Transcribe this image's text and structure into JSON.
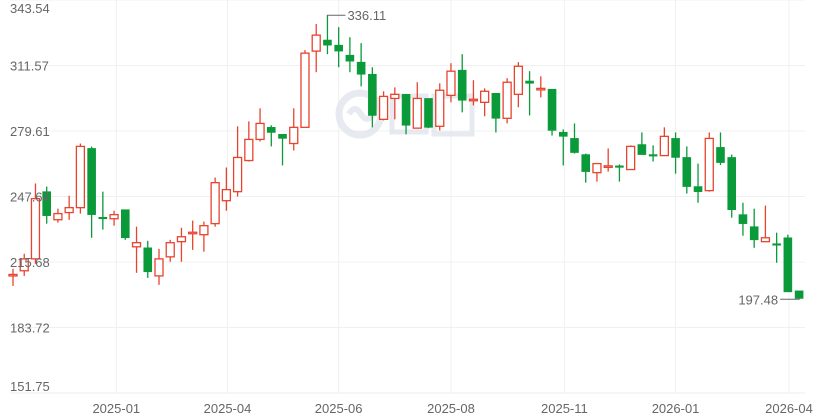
{
  "chart_data": {
    "type": "candlestick",
    "title": "",
    "xlabel": "",
    "ylabel": "",
    "ylim": [
      151.75,
      343.54
    ],
    "y_ticks": [
      "343.54",
      "311.57",
      "279.61",
      "247.64",
      "215.68",
      "183.72",
      "151.75"
    ],
    "x_ticks": [
      {
        "label": "2025-01",
        "index": 9.2
      },
      {
        "label": "2025-04",
        "index": 19.1
      },
      {
        "label": "2025-06",
        "index": 29.0
      },
      {
        "label": "2025-08",
        "index": 39.0
      },
      {
        "label": "2025-11",
        "index": 49.1
      },
      {
        "label": "2026-01",
        "index": 59.0
      },
      {
        "label": "2026-04",
        "index": 69.1
      }
    ],
    "grid": true,
    "colors": {
      "up": "#e8432f",
      "down": "#0a9a3a",
      "grid": "#f0f0f0",
      "text": "#666666",
      "watermark": "#dfe4ec"
    },
    "watermark": "雪球",
    "max_annotation": {
      "label": "336.11",
      "index": 28,
      "value": 336.11
    },
    "min_annotation": {
      "label": "197.48",
      "index": 70,
      "value": 197.48
    },
    "candles_ohlc": [
      [
        209.2,
        212.4,
        204.0,
        209.6
      ],
      [
        211.4,
        219.7,
        208.9,
        217.2
      ],
      [
        217.2,
        254.0,
        214.8,
        246.6
      ],
      [
        250.0,
        252.5,
        234.4,
        238.3
      ],
      [
        236.3,
        241.7,
        234.9,
        239.3
      ],
      [
        239.8,
        248.0,
        236.3,
        242.2
      ],
      [
        242.2,
        273.5,
        239.3,
        272.1
      ],
      [
        271.1,
        272.0,
        227.5,
        238.8
      ],
      [
        237.5,
        250.0,
        231.5,
        236.8
      ],
      [
        236.8,
        240.7,
        233.4,
        238.8
      ],
      [
        241.2,
        241.2,
        226.5,
        227.5
      ],
      [
        223.1,
        232.9,
        210.4,
        225.1
      ],
      [
        222.6,
        226.0,
        207.9,
        210.9
      ],
      [
        208.9,
        222.1,
        204.5,
        217.2
      ],
      [
        218.2,
        226.5,
        215.8,
        225.1
      ],
      [
        225.6,
        232.4,
        215.8,
        228.0
      ],
      [
        229.7,
        235.9,
        221.6,
        230.2
      ],
      [
        229.0,
        235.4,
        220.7,
        233.4
      ],
      [
        234.4,
        256.9,
        232.9,
        254.4
      ],
      [
        245.6,
        261.8,
        240.7,
        251.0
      ],
      [
        250.0,
        281.9,
        247.6,
        266.7
      ],
      [
        265.2,
        284.3,
        264.7,
        275.5
      ],
      [
        275.5,
        290.7,
        274.5,
        283.3
      ],
      [
        281.4,
        282.4,
        272.1,
        278.9
      ],
      [
        278.0,
        278.0,
        262.8,
        276.0
      ],
      [
        273.5,
        290.7,
        270.1,
        281.4
      ],
      [
        281.4,
        319.1,
        281.4,
        317.6
      ],
      [
        318.6,
        331.8,
        308.3,
        326.4
      ],
      [
        324.0,
        336.11,
        317.1,
        321.5
      ],
      [
        321.5,
        330.3,
        310.7,
        318.6
      ],
      [
        316.6,
        325.4,
        308.3,
        313.7
      ],
      [
        313.2,
        322.5,
        301.4,
        307.3
      ],
      [
        307.3,
        310.7,
        281.4,
        287.2
      ],
      [
        285.3,
        299.0,
        284.8,
        296.5
      ],
      [
        295.5,
        300.9,
        285.3,
        297.5
      ],
      [
        297.5,
        297.5,
        278.0,
        282.4
      ],
      [
        281.0,
        303.4,
        281.0,
        295.5
      ],
      [
        295.5,
        295.5,
        281.0,
        281.4
      ],
      [
        281.9,
        302.9,
        279.9,
        299.5
      ],
      [
        297.0,
        312.7,
        293.6,
        308.8
      ],
      [
        309.3,
        317.1,
        288.7,
        294.6
      ],
      [
        294.6,
        304.4,
        292.1,
        295.1
      ],
      [
        293.6,
        300.4,
        286.8,
        299.0
      ],
      [
        298.0,
        298.0,
        278.9,
        285.8
      ],
      [
        285.8,
        305.4,
        283.3,
        303.4
      ],
      [
        297.5,
        313.2,
        291.2,
        311.2
      ],
      [
        304.0,
        308.8,
        287.2,
        302.9
      ],
      [
        300.0,
        306.3,
        296.0,
        300.4
      ],
      [
        300.0,
        300.0,
        277.4,
        279.9
      ],
      [
        279.0,
        280.4,
        262.8,
        277.0
      ],
      [
        276.0,
        283.3,
        268.6,
        269.1
      ],
      [
        268.1,
        268.6,
        254.4,
        259.8
      ],
      [
        259.3,
        263.7,
        254.9,
        263.7
      ],
      [
        262.1,
        271.1,
        259.8,
        262.6
      ],
      [
        262.6,
        263.3,
        254.9,
        262.1
      ],
      [
        260.8,
        272.6,
        260.8,
        272.1
      ],
      [
        273.0,
        278.9,
        268.1,
        268.1
      ],
      [
        268.1,
        272.6,
        264.7,
        267.6
      ],
      [
        267.6,
        281.4,
        267.6,
        277.0
      ],
      [
        276.0,
        278.9,
        258.8,
        266.7
      ],
      [
        266.7,
        272.1,
        249.1,
        252.5
      ],
      [
        252.5,
        263.7,
        244.6,
        250.0
      ],
      [
        250.5,
        278.9,
        250.0,
        276.0
      ],
      [
        271.6,
        278.9,
        263.0,
        264.2
      ],
      [
        266.7,
        268.1,
        237.3,
        241.2
      ],
      [
        238.8,
        244.6,
        228.5,
        234.4
      ],
      [
        232.9,
        241.7,
        222.6,
        226.5
      ],
      [
        225.6,
        243.2,
        225.6,
        227.5
      ],
      [
        224.6,
        230.0,
        215.3,
        224.1
      ],
      [
        227.5,
        229.0,
        201.1,
        201.1
      ],
      [
        201.6,
        201.6,
        197.48,
        197.9
      ]
    ]
  }
}
